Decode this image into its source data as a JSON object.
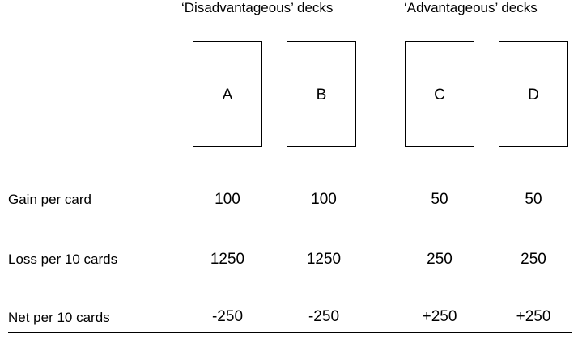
{
  "groups": {
    "disadvantageous": "‘Disadvantageous’ decks",
    "advantageous": "‘Advantageous’ decks"
  },
  "decks": [
    "A",
    "B",
    "C",
    "D"
  ],
  "rows": [
    {
      "label": "Gain per card",
      "values": [
        "100",
        "100",
        "50",
        "50"
      ]
    },
    {
      "label": "Loss per 10 cards",
      "values": [
        "1250",
        "1250",
        "250",
        "250"
      ]
    },
    {
      "label": "Net per 10 cards",
      "values": [
        "-250",
        "-250",
        "+250",
        "+250"
      ]
    }
  ]
}
